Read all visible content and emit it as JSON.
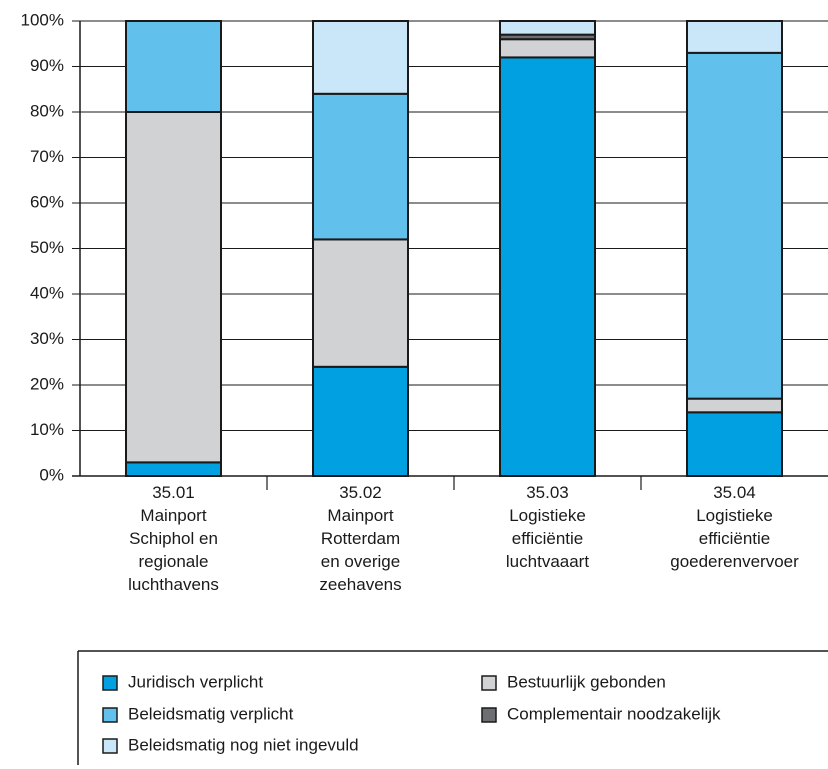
{
  "chart_data": {
    "type": "stacked_bar",
    "categories": [
      "35.01\nMainport\nSchiphol en\nregionale\nluchthavens",
      "35.02\nMainport\nRotterdam\nen overige\nzeehavens",
      "35.03\nLogistieke\nefficiëntie\nluchtvaaart",
      "35.04\nLogistieke\nefficiëntie\ngoederenvervoer"
    ],
    "series": [
      {
        "name": "Juridisch verplicht",
        "color": "#00a0e1",
        "values": [
          3,
          24,
          92,
          14
        ]
      },
      {
        "name": "Bestuurlijk gebonden",
        "color": "#d1d2d4",
        "values": [
          77,
          28,
          4,
          3
        ]
      },
      {
        "name": "Complementair noodzakelijk",
        "color": "#6d6e71",
        "values": [
          0,
          0,
          1,
          0
        ]
      },
      {
        "name": "Beleidsmatig verplicht",
        "color": "#62c0ec",
        "values": [
          20,
          32,
          0,
          76
        ]
      },
      {
        "name": "Beleidsmatig nog niet ingevuld",
        "color": "#c9e7f8",
        "values": [
          0,
          16,
          3,
          7
        ]
      }
    ],
    "ylim": [
      0,
      100
    ],
    "yticks": [
      {
        "value": 0,
        "label": "0%"
      },
      {
        "value": 10,
        "label": "10%"
      },
      {
        "value": 20,
        "label": "20%"
      },
      {
        "value": 30,
        "label": "30%"
      },
      {
        "value": 40,
        "label": "40%"
      },
      {
        "value": 50,
        "label": "50%"
      },
      {
        "value": 60,
        "label": "60%"
      },
      {
        "value": 70,
        "label": "70%"
      },
      {
        "value": 80,
        "label": "80%"
      },
      {
        "value": 90,
        "label": "90%"
      },
      {
        "value": 100,
        "label": "100%"
      }
    ],
    "grid": true
  }
}
